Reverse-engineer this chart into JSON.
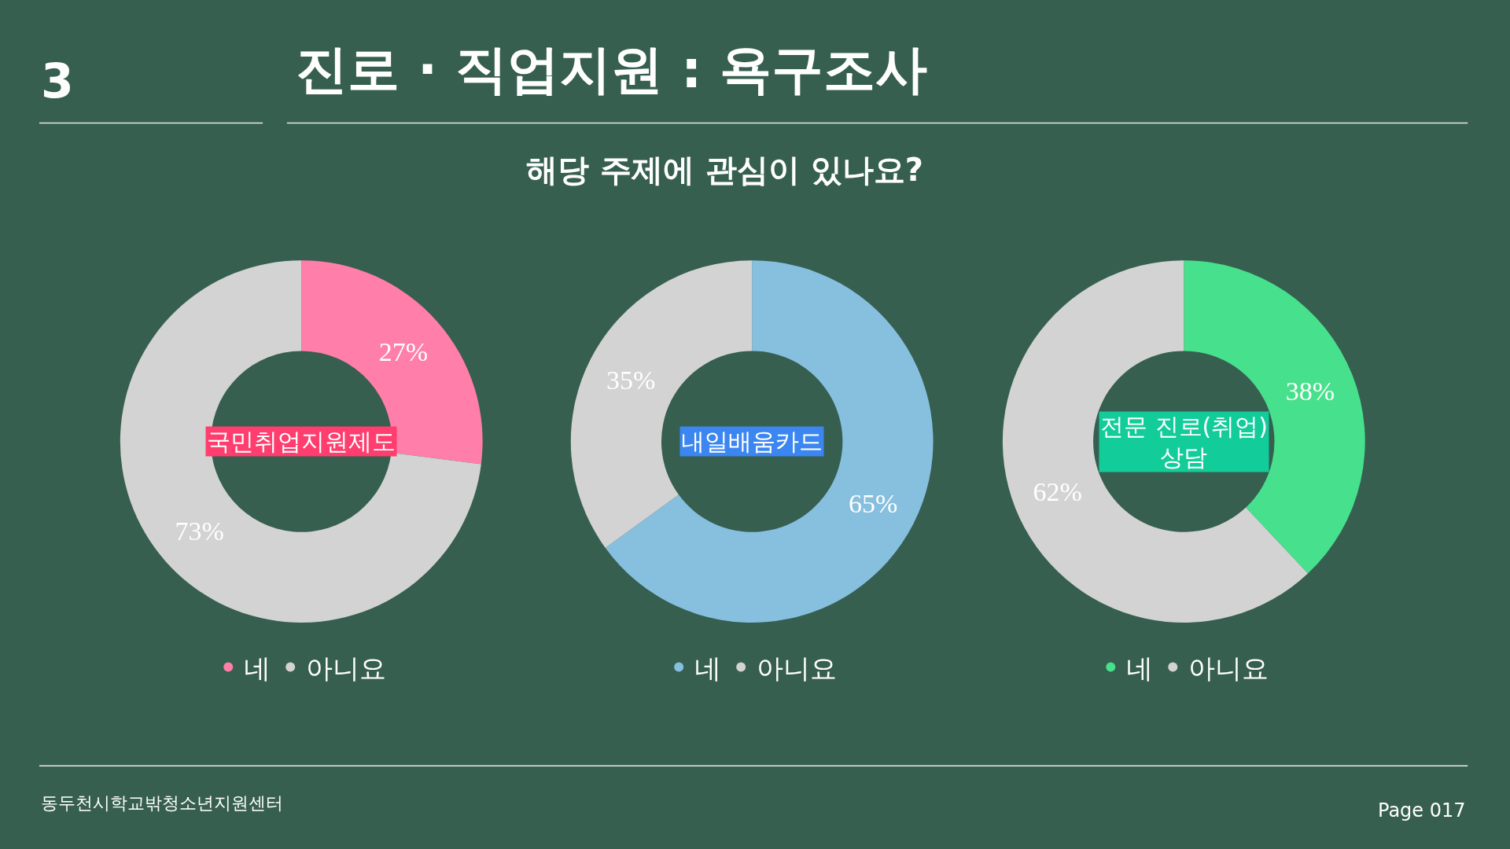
{
  "chart_data": [
    {
      "type": "other",
      "title": "진로 · 직업지원 : 욕구조사",
      "subtitle": "해당 주제에 관심이 있나요?",
      "annotations": [
        "3",
        "동두천시학교밖청소년지원센터",
        "Page 017"
      ]
    },
    {
      "type": "donut",
      "title": "국민취업지원제도",
      "categories": [
        "네",
        "아니요"
      ],
      "values": [
        27,
        73
      ],
      "value_labels": [
        "27%",
        "73%"
      ],
      "colors": [
        "#ff7eaa",
        "#d3d3d3"
      ],
      "legend": "bottom"
    },
    {
      "type": "donut",
      "title": "내일배움카드",
      "categories": [
        "네",
        "아니요"
      ],
      "values": [
        65,
        35
      ],
      "value_labels": [
        "65%",
        "35%"
      ],
      "colors": [
        "#87bfdf",
        "#d3d3d3"
      ],
      "legend": "bottom"
    },
    {
      "type": "donut",
      "title": "전문 진로(취업) 상담",
      "categories": [
        "네",
        "아니요"
      ],
      "values": [
        38,
        62
      ],
      "value_labels": [
        "38%",
        "62%"
      ],
      "colors": [
        "#47e08c",
        "#d3d3d3"
      ],
      "legend": "bottom"
    }
  ]
}
